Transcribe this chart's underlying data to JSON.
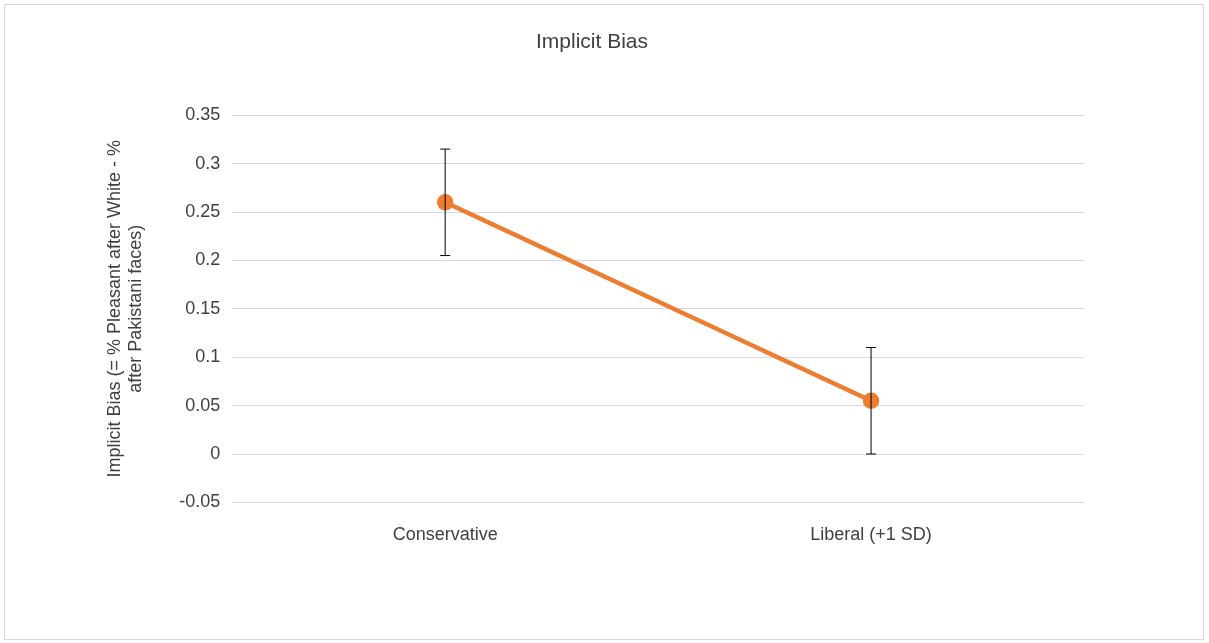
{
  "chart_data": {
    "type": "line",
    "title": "Implicit Bias",
    "ylabel": "Implicit Bias (= % Pleasant after White - % after Pakistani faces)",
    "categories": [
      "Conservative",
      "Liberal (+1 SD)"
    ],
    "series": [
      {
        "color": "#ed7d31",
        "values": [
          0.26,
          0.055
        ],
        "errors": [
          0.055,
          0.055
        ]
      }
    ],
    "ylim": [
      -0.05,
      0.35
    ],
    "yticks": [
      -0.05,
      0,
      0.05,
      0.1,
      0.15,
      0.2,
      0.25,
      0.3,
      0.35
    ],
    "grid": "y",
    "legend": false,
    "marker": "circle",
    "line_style": "solid"
  }
}
